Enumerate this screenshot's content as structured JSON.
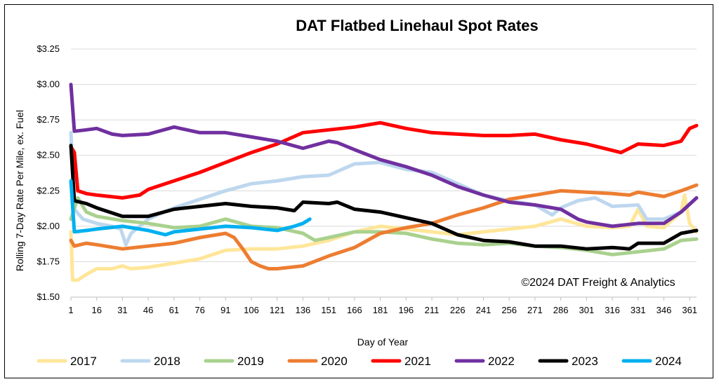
{
  "chart_data": {
    "type": "line",
    "title": "DAT Flatbed Linehaul Spot Rates",
    "xlabel": "Day of Year",
    "ylabel": "Rolling 7-Day Rate Per Mile, ex. Fuel",
    "annotation": "©2024 DAT Freight & Analytics",
    "xlim": [
      1,
      365
    ],
    "ylim": [
      1.5,
      3.25
    ],
    "x_ticks": [
      1,
      16,
      31,
      46,
      61,
      76,
      91,
      106,
      121,
      136,
      151,
      166,
      181,
      196,
      211,
      226,
      241,
      256,
      271,
      286,
      301,
      316,
      331,
      346,
      361
    ],
    "y_ticks": [
      {
        "value": 1.5,
        "label": "$1.50"
      },
      {
        "value": 1.75,
        "label": "$1.75"
      },
      {
        "value": 2.0,
        "label": "$2.00"
      },
      {
        "value": 2.25,
        "label": "$2.25"
      },
      {
        "value": 2.5,
        "label": "$2.50"
      },
      {
        "value": 2.75,
        "label": "$2.75"
      },
      {
        "value": 3.0,
        "label": "$3.00"
      },
      {
        "value": 3.25,
        "label": "$3.25"
      }
    ],
    "grid": "horizontal",
    "legend_position": "bottom",
    "series": [
      {
        "name": "2017",
        "color": "#FFE699",
        "points": [
          [
            1,
            1.96
          ],
          [
            2,
            1.62
          ],
          [
            5,
            1.62
          ],
          [
            10,
            1.66
          ],
          [
            16,
            1.7
          ],
          [
            25,
            1.7
          ],
          [
            31,
            1.72
          ],
          [
            36,
            1.7
          ],
          [
            46,
            1.71
          ],
          [
            61,
            1.74
          ],
          [
            76,
            1.77
          ],
          [
            91,
            1.83
          ],
          [
            106,
            1.84
          ],
          [
            121,
            1.84
          ],
          [
            136,
            1.86
          ],
          [
            151,
            1.9
          ],
          [
            166,
            1.96
          ],
          [
            181,
            2.0
          ],
          [
            196,
            1.98
          ],
          [
            211,
            1.96
          ],
          [
            226,
            1.94
          ],
          [
            241,
            1.96
          ],
          [
            256,
            1.98
          ],
          [
            271,
            2.0
          ],
          [
            286,
            2.05
          ],
          [
            301,
            2.0
          ],
          [
            316,
            1.99
          ],
          [
            326,
            2.0
          ],
          [
            331,
            2.12
          ],
          [
            336,
            2.0
          ],
          [
            346,
            1.99
          ],
          [
            356,
            2.1
          ],
          [
            358,
            2.22
          ],
          [
            361,
            2.02
          ],
          [
            365,
            1.96
          ]
        ]
      },
      {
        "name": "2018",
        "color": "#BDD7EE",
        "points": [
          [
            1,
            2.66
          ],
          [
            3,
            2.12
          ],
          [
            8,
            2.05
          ],
          [
            16,
            2.02
          ],
          [
            25,
            2.0
          ],
          [
            30,
            1.98
          ],
          [
            33,
            1.87
          ],
          [
            36,
            1.95
          ],
          [
            46,
            2.05
          ],
          [
            55,
            2.1
          ],
          [
            61,
            2.13
          ],
          [
            76,
            2.19
          ],
          [
            91,
            2.25
          ],
          [
            106,
            2.3
          ],
          [
            121,
            2.32
          ],
          [
            136,
            2.35
          ],
          [
            151,
            2.36
          ],
          [
            166,
            2.44
          ],
          [
            181,
            2.45
          ],
          [
            196,
            2.4
          ],
          [
            211,
            2.38
          ],
          [
            226,
            2.3
          ],
          [
            241,
            2.22
          ],
          [
            256,
            2.18
          ],
          [
            271,
            2.15
          ],
          [
            281,
            2.08
          ],
          [
            286,
            2.13
          ],
          [
            296,
            2.18
          ],
          [
            306,
            2.2
          ],
          [
            316,
            2.14
          ],
          [
            331,
            2.15
          ],
          [
            336,
            2.05
          ],
          [
            346,
            2.05
          ],
          [
            356,
            2.1
          ],
          [
            365,
            2.2
          ]
        ]
      },
      {
        "name": "2019",
        "color": "#A9D18E",
        "points": [
          [
            1,
            2.05
          ],
          [
            5,
            2.2
          ],
          [
            10,
            2.1
          ],
          [
            16,
            2.07
          ],
          [
            31,
            2.04
          ],
          [
            46,
            2.02
          ],
          [
            61,
            1.99
          ],
          [
            76,
            2.0
          ],
          [
            91,
            2.05
          ],
          [
            106,
            2.0
          ],
          [
            121,
            1.99
          ],
          [
            136,
            1.95
          ],
          [
            143,
            1.9
          ],
          [
            151,
            1.92
          ],
          [
            166,
            1.96
          ],
          [
            181,
            1.96
          ],
          [
            196,
            1.95
          ],
          [
            211,
            1.91
          ],
          [
            226,
            1.88
          ],
          [
            241,
            1.87
          ],
          [
            256,
            1.88
          ],
          [
            271,
            1.86
          ],
          [
            286,
            1.85
          ],
          [
            301,
            1.83
          ],
          [
            316,
            1.8
          ],
          [
            331,
            1.82
          ],
          [
            346,
            1.84
          ],
          [
            356,
            1.9
          ],
          [
            365,
            1.91
          ]
        ]
      },
      {
        "name": "2020",
        "color": "#ED7D31",
        "points": [
          [
            1,
            1.9
          ],
          [
            3,
            1.86
          ],
          [
            10,
            1.88
          ],
          [
            16,
            1.87
          ],
          [
            31,
            1.84
          ],
          [
            46,
            1.86
          ],
          [
            61,
            1.88
          ],
          [
            76,
            1.92
          ],
          [
            91,
            1.95
          ],
          [
            96,
            1.92
          ],
          [
            101,
            1.84
          ],
          [
            106,
            1.75
          ],
          [
            111,
            1.72
          ],
          [
            116,
            1.7
          ],
          [
            121,
            1.7
          ],
          [
            136,
            1.72
          ],
          [
            151,
            1.79
          ],
          [
            166,
            1.85
          ],
          [
            181,
            1.95
          ],
          [
            196,
            1.99
          ],
          [
            211,
            2.02
          ],
          [
            226,
            2.08
          ],
          [
            241,
            2.13
          ],
          [
            256,
            2.19
          ],
          [
            271,
            2.22
          ],
          [
            286,
            2.25
          ],
          [
            301,
            2.24
          ],
          [
            316,
            2.23
          ],
          [
            326,
            2.22
          ],
          [
            331,
            2.24
          ],
          [
            346,
            2.21
          ],
          [
            356,
            2.25
          ],
          [
            365,
            2.29
          ]
        ]
      },
      {
        "name": "2021",
        "color": "#FF0000",
        "points": [
          [
            1,
            2.56
          ],
          [
            3,
            2.52
          ],
          [
            5,
            2.25
          ],
          [
            10,
            2.23
          ],
          [
            16,
            2.22
          ],
          [
            31,
            2.2
          ],
          [
            41,
            2.22
          ],
          [
            46,
            2.26
          ],
          [
            61,
            2.32
          ],
          [
            76,
            2.38
          ],
          [
            91,
            2.45
          ],
          [
            106,
            2.52
          ],
          [
            121,
            2.58
          ],
          [
            136,
            2.66
          ],
          [
            151,
            2.68
          ],
          [
            166,
            2.7
          ],
          [
            181,
            2.73
          ],
          [
            196,
            2.69
          ],
          [
            211,
            2.66
          ],
          [
            226,
            2.65
          ],
          [
            241,
            2.64
          ],
          [
            256,
            2.64
          ],
          [
            271,
            2.65
          ],
          [
            286,
            2.61
          ],
          [
            301,
            2.58
          ],
          [
            311,
            2.55
          ],
          [
            321,
            2.52
          ],
          [
            331,
            2.58
          ],
          [
            346,
            2.57
          ],
          [
            356,
            2.6
          ],
          [
            361,
            2.69
          ],
          [
            365,
            2.71
          ]
        ]
      },
      {
        "name": "2022",
        "color": "#7030A0",
        "points": [
          [
            1,
            3.0
          ],
          [
            3,
            2.67
          ],
          [
            10,
            2.68
          ],
          [
            16,
            2.69
          ],
          [
            25,
            2.65
          ],
          [
            31,
            2.64
          ],
          [
            46,
            2.65
          ],
          [
            61,
            2.7
          ],
          [
            76,
            2.66
          ],
          [
            91,
            2.66
          ],
          [
            106,
            2.63
          ],
          [
            121,
            2.6
          ],
          [
            136,
            2.55
          ],
          [
            151,
            2.6
          ],
          [
            156,
            2.59
          ],
          [
            166,
            2.54
          ],
          [
            181,
            2.47
          ],
          [
            196,
            2.42
          ],
          [
            211,
            2.36
          ],
          [
            226,
            2.28
          ],
          [
            241,
            2.22
          ],
          [
            256,
            2.17
          ],
          [
            271,
            2.15
          ],
          [
            286,
            2.12
          ],
          [
            296,
            2.05
          ],
          [
            301,
            2.03
          ],
          [
            316,
            2.0
          ],
          [
            331,
            2.02
          ],
          [
            346,
            2.02
          ],
          [
            356,
            2.1
          ],
          [
            365,
            2.2
          ]
        ]
      },
      {
        "name": "2023",
        "color": "#000000",
        "points": [
          [
            1,
            2.57
          ],
          [
            3,
            2.18
          ],
          [
            10,
            2.16
          ],
          [
            16,
            2.13
          ],
          [
            31,
            2.07
          ],
          [
            46,
            2.07
          ],
          [
            61,
            2.12
          ],
          [
            76,
            2.14
          ],
          [
            91,
            2.16
          ],
          [
            106,
            2.14
          ],
          [
            121,
            2.13
          ],
          [
            131,
            2.11
          ],
          [
            136,
            2.17
          ],
          [
            151,
            2.16
          ],
          [
            156,
            2.17
          ],
          [
            166,
            2.12
          ],
          [
            181,
            2.1
          ],
          [
            196,
            2.06
          ],
          [
            211,
            2.02
          ],
          [
            226,
            1.94
          ],
          [
            241,
            1.9
          ],
          [
            256,
            1.89
          ],
          [
            271,
            1.86
          ],
          [
            286,
            1.86
          ],
          [
            301,
            1.84
          ],
          [
            316,
            1.85
          ],
          [
            326,
            1.84
          ],
          [
            331,
            1.88
          ],
          [
            346,
            1.88
          ],
          [
            356,
            1.95
          ],
          [
            365,
            1.97
          ]
        ]
      },
      {
        "name": "2024",
        "color": "#00B0F0",
        "points": [
          [
            1,
            2.32
          ],
          [
            3,
            1.96
          ],
          [
            10,
            1.97
          ],
          [
            16,
            1.98
          ],
          [
            31,
            2.0
          ],
          [
            46,
            1.97
          ],
          [
            56,
            1.94
          ],
          [
            61,
            1.96
          ],
          [
            76,
            1.98
          ],
          [
            91,
            2.0
          ],
          [
            106,
            1.99
          ],
          [
            121,
            1.97
          ],
          [
            131,
            2.0
          ],
          [
            136,
            2.02
          ],
          [
            140,
            2.05
          ]
        ]
      }
    ]
  }
}
